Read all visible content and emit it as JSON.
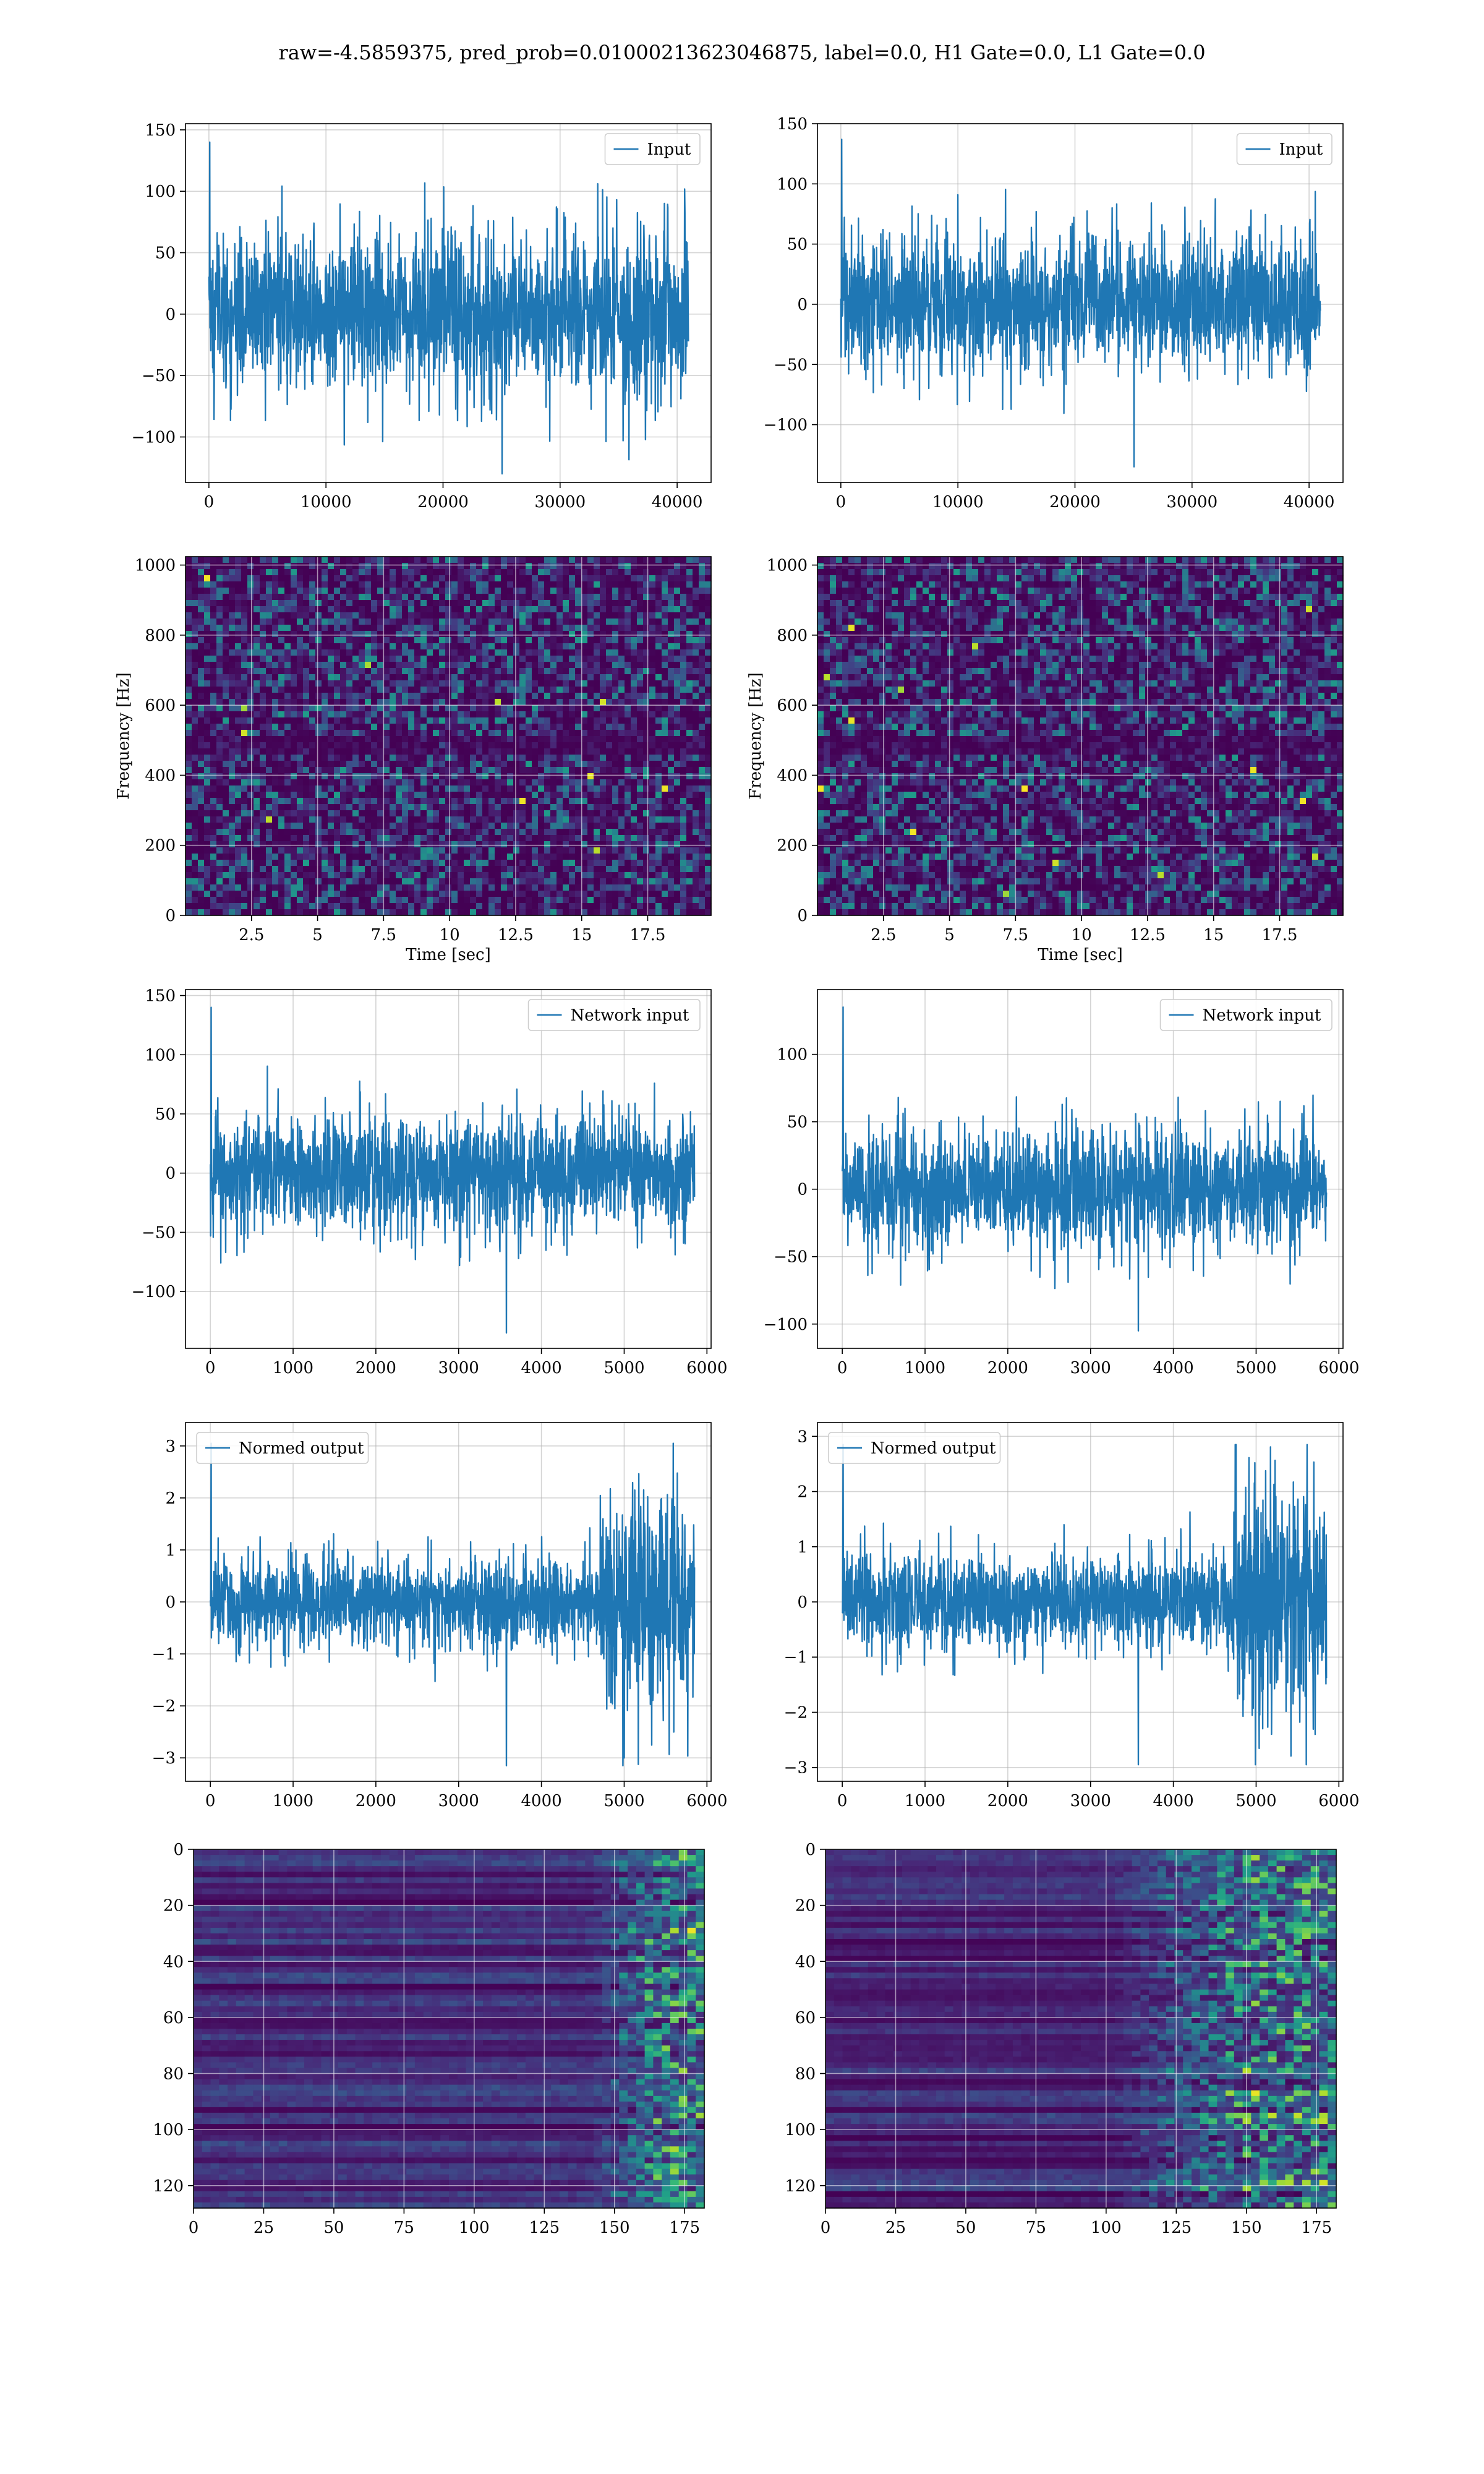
{
  "title": "raw=-4.5859375, pred_prob=0.01000213623046875, label=0.0, H1 Gate=0.0, L1 Gate=0.0",
  "colors": {
    "line": "#1f77b4",
    "grid": "#b0b0b0",
    "viridis_dark": "#440154",
    "viridis_teal": "#21918c",
    "viridis_yellow": "#fde725"
  },
  "chart_data": [
    {
      "id": "input-h1",
      "type": "line",
      "xlim": [
        -2000,
        42900
      ],
      "ylim": [
        -137,
        155
      ],
      "xticks": [
        0,
        10000,
        20000,
        30000,
        40000
      ],
      "yticks": [
        -100,
        -50,
        0,
        50,
        100,
        150
      ],
      "legend": "Input",
      "legend_loc": "upper right",
      "series": [
        {
          "name": "Input",
          "x_range": [
            0,
            40960
          ],
          "typical_amplitude": 75,
          "peak_max": 140,
          "peak_min": -130
        }
      ],
      "grid": true
    },
    {
      "id": "input-l1",
      "type": "line",
      "xlim": [
        -2000,
        42900
      ],
      "ylim": [
        -148,
        150
      ],
      "xticks": [
        0,
        10000,
        20000,
        30000,
        40000
      ],
      "yticks": [
        -100,
        -50,
        0,
        50,
        100,
        150
      ],
      "legend": "Input",
      "legend_loc": "upper right",
      "series": [
        {
          "name": "Input",
          "x_range": [
            0,
            40960
          ],
          "typical_amplitude": 65,
          "peak_max": 137,
          "peak_min": -135
        }
      ],
      "grid": true
    },
    {
      "id": "spectrogram-h1",
      "type": "heatmap",
      "xlim": [
        0,
        19.9
      ],
      "ylim": [
        0,
        1024
      ],
      "xticks": [
        2.5,
        5.0,
        7.5,
        10.0,
        12.5,
        15.0,
        17.5
      ],
      "yticks": [
        0,
        200,
        400,
        600,
        800,
        1000
      ],
      "xlabel": "Time [sec]",
      "ylabel": "Frequency [Hz]",
      "colormap": "viridis",
      "dark_band_hz": 500,
      "grid": true
    },
    {
      "id": "spectrogram-l1",
      "type": "heatmap",
      "xlim": [
        0,
        19.9
      ],
      "ylim": [
        0,
        1024
      ],
      "xticks": [
        2.5,
        5.0,
        7.5,
        10.0,
        12.5,
        15.0,
        17.5
      ],
      "yticks": [
        0,
        200,
        400,
        600,
        800,
        1000
      ],
      "xlabel": "Time [sec]",
      "ylabel": "Frequency [Hz]",
      "colormap": "viridis",
      "dark_band_hz": 500,
      "grid": true
    },
    {
      "id": "network-input-h1",
      "type": "line",
      "xlim": [
        -300,
        6050
      ],
      "ylim": [
        -148,
        155
      ],
      "xticks": [
        0,
        1000,
        2000,
        3000,
        4000,
        5000,
        6000
      ],
      "yticks": [
        -100,
        -50,
        0,
        50,
        100,
        150
      ],
      "legend": "Network input",
      "legend_loc": "upper right",
      "series": [
        {
          "name": "Network input",
          "x_range": [
            0,
            5850
          ],
          "typical_amplitude": 55,
          "peak_max": 140,
          "peak_min": -135
        }
      ],
      "grid": true
    },
    {
      "id": "network-input-l1",
      "type": "line",
      "xlim": [
        -300,
        6050
      ],
      "ylim": [
        -118,
        148
      ],
      "xticks": [
        0,
        1000,
        2000,
        3000,
        4000,
        5000,
        6000
      ],
      "yticks": [
        -100,
        -50,
        0,
        50,
        100
      ],
      "legend": "Network input",
      "legend_loc": "upper right",
      "series": [
        {
          "name": "Network input",
          "x_range": [
            0,
            5850
          ],
          "typical_amplitude": 50,
          "peak_max": 135,
          "peak_min": -105
        }
      ],
      "grid": true
    },
    {
      "id": "normed-output-h1",
      "type": "line",
      "xlim": [
        -300,
        6050
      ],
      "ylim": [
        -3.45,
        3.45
      ],
      "xticks": [
        0,
        1000,
        2000,
        3000,
        4000,
        5000,
        6000
      ],
      "yticks": [
        -3,
        -2,
        -1,
        0,
        1,
        2,
        3
      ],
      "legend": "Normed output",
      "legend_loc": "upper left",
      "series": [
        {
          "name": "Normed output",
          "x_range": [
            0,
            5850
          ],
          "typical_amplitude": 1.0,
          "burst_x_range": [
            4700,
            5850
          ],
          "burst_amplitude": 2.6,
          "peak_max": 3.05,
          "peak_min": -3.15
        }
      ],
      "grid": true
    },
    {
      "id": "normed-output-l1",
      "type": "line",
      "xlim": [
        -300,
        6050
      ],
      "ylim": [
        -3.25,
        3.25
      ],
      "xticks": [
        0,
        1000,
        2000,
        3000,
        4000,
        5000,
        6000
      ],
      "yticks": [
        -3,
        -2,
        -1,
        0,
        1,
        2,
        3
      ],
      "legend": "Normed output",
      "legend_loc": "upper left",
      "series": [
        {
          "name": "Normed output",
          "x_range": [
            0,
            5850
          ],
          "typical_amplitude": 1.0,
          "burst_x_range": [
            4700,
            5850
          ],
          "burst_amplitude": 2.4,
          "peak_max": 2.85,
          "peak_min": -2.95
        }
      ],
      "grid": true
    },
    {
      "id": "feature-map-h1",
      "type": "heatmap",
      "xlim": [
        0,
        182
      ],
      "ylim": [
        128,
        0
      ],
      "xticks": [
        0,
        25,
        50,
        75,
        100,
        125,
        150,
        175
      ],
      "yticks": [
        0,
        20,
        40,
        60,
        80,
        100,
        120
      ],
      "colormap": "viridis",
      "bright_region_x_from": 140,
      "grid": true
    },
    {
      "id": "feature-map-l1",
      "type": "heatmap",
      "xlim": [
        0,
        182
      ],
      "ylim": [
        128,
        0
      ],
      "xticks": [
        0,
        25,
        50,
        75,
        100,
        125,
        150,
        175
      ],
      "yticks": [
        0,
        20,
        40,
        60,
        80,
        100,
        120
      ],
      "colormap": "viridis",
      "bright_region_x_from": 100,
      "grid": true
    }
  ]
}
